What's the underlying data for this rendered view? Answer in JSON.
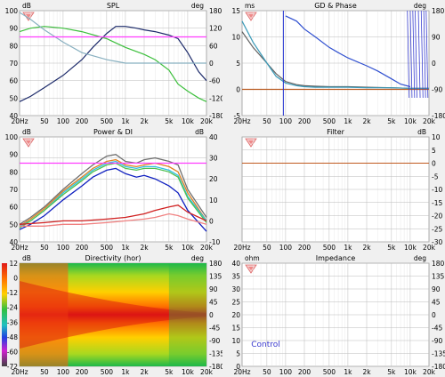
{
  "x_ticks": [
    "20Hz",
    "50",
    "100",
    "200",
    "500",
    "1k",
    "2k",
    "5k",
    "10k",
    "20k"
  ],
  "x_tick_freqs": [
    20,
    50,
    100,
    200,
    500,
    1000,
    2000,
    5000,
    10000,
    20000
  ],
  "panels": {
    "spl": {
      "title": "SPL",
      "left_unit": "dB",
      "right_unit": "deg",
      "left_ticks": [
        "100",
        "90",
        "80",
        "70",
        "60",
        "50",
        "40"
      ],
      "right_ticks": [
        "180",
        "120",
        "60",
        "0",
        "-60",
        "-120",
        "-180"
      ],
      "ylim": [
        40,
        100
      ]
    },
    "gd": {
      "title": "GD & Phase",
      "left_unit": "ms",
      "right_unit": "deg",
      "left_ticks": [
        "15",
        "10",
        "5",
        "0",
        "-5"
      ],
      "right_ticks": [
        "180",
        "90",
        "0",
        "-90",
        "-180"
      ],
      "ylim": [
        -5,
        15
      ]
    },
    "power": {
      "title": "Power & DI",
      "left_unit": "dB",
      "right_unit": "dB",
      "left_ticks": [
        "100",
        "90",
        "80",
        "70",
        "60",
        "50",
        "40"
      ],
      "right_ticks": [
        "40",
        "30",
        "20",
        "10",
        "0",
        "-10"
      ],
      "ylim": [
        40,
        100
      ]
    },
    "filter": {
      "title": "Filter",
      "left_unit": "",
      "right_unit": "dB",
      "left_ticks": [],
      "right_ticks": [
        "10",
        "5",
        "0",
        "-5",
        "-10",
        "-15",
        "-20",
        "-25",
        "-30"
      ],
      "ylim": [
        -30,
        10
      ]
    },
    "directivity": {
      "title": "Directivity (hor)",
      "left_unit": "dB",
      "right_unit": "deg",
      "left_ticks": [
        "12",
        "0",
        "-12",
        "-24",
        "-36",
        "-48",
        "-60",
        "-72"
      ],
      "right_ticks": [
        "180",
        "135",
        "90",
        "45",
        "0",
        "-45",
        "-90",
        "-135",
        "-180"
      ]
    },
    "impedance": {
      "title": "Impedance",
      "left_unit": "ohm",
      "right_unit": "deg",
      "left_ticks": [
        "40",
        "35",
        "30",
        "25",
        "20",
        "15",
        "10",
        "5",
        "0"
      ],
      "right_ticks": [
        "180",
        "135",
        "90",
        "45",
        "0",
        "-45",
        "-90",
        "-135",
        "-180"
      ],
      "control_label": "Control"
    }
  },
  "chart_data": [
    {
      "type": "line",
      "title": "SPL",
      "xscale": "log",
      "xlim": [
        20,
        20000
      ],
      "ylim": [
        40,
        100
      ],
      "series": [
        {
          "color": "#1c2a6a",
          "x": [
            20,
            30,
            50,
            100,
            200,
            300,
            500,
            700,
            1000,
            1500,
            2000,
            3000,
            5000,
            7000,
            10000,
            15000,
            20000
          ],
          "y": [
            48,
            51,
            56,
            63,
            72,
            79,
            87,
            91,
            91,
            90,
            89,
            88,
            86,
            84,
            76,
            65,
            60
          ]
        },
        {
          "color": "#3cbf3c",
          "x": [
            20,
            30,
            50,
            100,
            200,
            500,
            1000,
            2000,
            3000,
            5000,
            7000,
            10000,
            15000,
            20000
          ],
          "y": [
            88,
            90,
            91,
            90,
            88,
            84,
            79,
            75,
            72,
            66,
            58,
            54,
            50,
            48
          ]
        },
        {
          "color": "#88b0c0",
          "x": [
            20,
            30,
            50,
            100,
            200,
            500,
            1000,
            2000,
            5000,
            10000,
            20000
          ],
          "y": [
            99,
            95,
            89,
            82,
            76,
            72,
            70,
            70,
            70,
            70,
            70
          ]
        },
        {
          "color": "#ff3cff",
          "x": [
            20,
            20000
          ],
          "y": [
            85,
            85
          ]
        }
      ]
    },
    {
      "type": "line",
      "title": "GD & Phase",
      "xscale": "log",
      "xlim": [
        20,
        20000
      ],
      "ylim": [
        -5,
        15
      ],
      "series": [
        {
          "color": "#606060",
          "x": [
            20,
            30,
            50,
            70,
            100,
            150,
            200,
            300,
            500,
            700,
            1000,
            2000,
            5000,
            10000,
            20000
          ],
          "y": [
            11,
            8,
            5,
            3,
            1.5,
            0.9,
            0.7,
            0.6,
            0.5,
            0.5,
            0.5,
            0.4,
            0.3,
            0.2,
            0.2
          ]
        },
        {
          "color": "#3a9ab8",
          "x": [
            20,
            30,
            50,
            70,
            100,
            150,
            200,
            300,
            500,
            1000,
            2000,
            5000,
            10000,
            20000
          ],
          "y": [
            13,
            9,
            5,
            2.5,
            1.2,
            0.7,
            0.5,
            0.4,
            0.4,
            0.4,
            0.3,
            0.3,
            0.2,
            0.2
          ]
        },
        {
          "color": "#3050d0",
          "x": [
            100,
            150,
            200,
            300,
            500,
            700,
            1000,
            2000,
            3000,
            5000,
            7000,
            10000
          ],
          "y": [
            14,
            13,
            11.5,
            10,
            8,
            7,
            6,
            4.5,
            3.5,
            2,
            1,
            0.5
          ]
        },
        {
          "color": "#b85a20",
          "x": [
            20,
            20000
          ],
          "y": [
            0,
            0
          ]
        }
      ]
    },
    {
      "type": "line",
      "title": "Power & DI",
      "xscale": "log",
      "xlim": [
        20,
        20000
      ],
      "ylim": [
        40,
        100
      ],
      "series": [
        {
          "color": "#707070",
          "x": [
            20,
            30,
            50,
            100,
            200,
            300,
            500,
            700,
            1000,
            1500,
            2000,
            3000,
            5000,
            7000,
            10000,
            20000
          ],
          "y": [
            50,
            54,
            60,
            70,
            79,
            84,
            89,
            90,
            86,
            85,
            87,
            88,
            86,
            84,
            70,
            54
          ]
        },
        {
          "color": "#e08020",
          "x": [
            20,
            30,
            50,
            100,
            200,
            300,
            500,
            700,
            1000,
            1500,
            2000,
            3000,
            5000,
            7000,
            10000,
            20000
          ],
          "y": [
            49,
            53,
            59,
            69,
            77,
            82,
            86,
            87,
            84,
            83,
            84,
            85,
            83,
            80,
            68,
            52
          ]
        },
        {
          "color": "#30c0e0",
          "x": [
            20,
            30,
            50,
            100,
            200,
            300,
            500,
            700,
            1000,
            1500,
            2000,
            3000,
            5000,
            7000,
            10000,
            20000
          ],
          "y": [
            49,
            52,
            58,
            68,
            76,
            81,
            85,
            86,
            83,
            82,
            83,
            83,
            81,
            78,
            66,
            52
          ]
        },
        {
          "color": "#50c050",
          "x": [
            20,
            30,
            50,
            100,
            200,
            300,
            500,
            700,
            1000,
            1500,
            2000,
            3000,
            5000,
            7000,
            10000,
            20000
          ],
          "y": [
            48,
            52,
            58,
            67,
            75,
            80,
            84,
            85,
            82,
            81,
            82,
            82,
            80,
            77,
            65,
            51
          ]
        },
        {
          "color": "#1020c0",
          "x": [
            20,
            30,
            50,
            100,
            200,
            300,
            500,
            700,
            1000,
            1500,
            2000,
            3000,
            5000,
            7000,
            10000,
            20000
          ],
          "y": [
            47,
            50,
            55,
            64,
            72,
            77,
            81,
            82,
            79,
            77,
            78,
            76,
            72,
            68,
            58,
            46
          ]
        },
        {
          "color": "#d02020",
          "x": [
            20,
            50,
            100,
            200,
            500,
            1000,
            2000,
            3000,
            5000,
            7000,
            10000,
            20000
          ],
          "y": [
            50,
            51,
            52,
            52,
            53,
            54,
            56,
            58,
            60,
            61,
            57,
            52
          ]
        },
        {
          "color": "#f08080",
          "x": [
            20,
            50,
            100,
            200,
            500,
            1000,
            2000,
            3000,
            5000,
            7000,
            10000,
            20000
          ],
          "y": [
            49,
            49,
            50,
            50,
            51,
            52,
            53,
            54,
            56,
            55,
            53,
            50
          ]
        },
        {
          "color": "#ff3cff",
          "x": [
            20,
            20000
          ],
          "y": [
            85,
            85
          ]
        }
      ]
    },
    {
      "type": "line",
      "title": "Filter",
      "xscale": "log",
      "xlim": [
        20,
        20000
      ],
      "ylim": [
        -30,
        10
      ],
      "series": [
        {
          "color": "#c05a20",
          "x": [
            20,
            20000
          ],
          "y": [
            0,
            0
          ]
        }
      ]
    },
    {
      "type": "heatmap",
      "title": "Directivity (hor)",
      "xscale": "log",
      "xlim": [
        20,
        20000
      ],
      "ylim": [
        -180,
        180
      ],
      "colorbar_ticks": [
        12,
        0,
        -12,
        -24,
        -36,
        -48,
        -60,
        -72
      ]
    },
    {
      "type": "line",
      "title": "Impedance",
      "xscale": "log",
      "xlim": [
        20,
        20000
      ],
      "ylim": [
        0,
        40
      ],
      "series": []
    }
  ]
}
